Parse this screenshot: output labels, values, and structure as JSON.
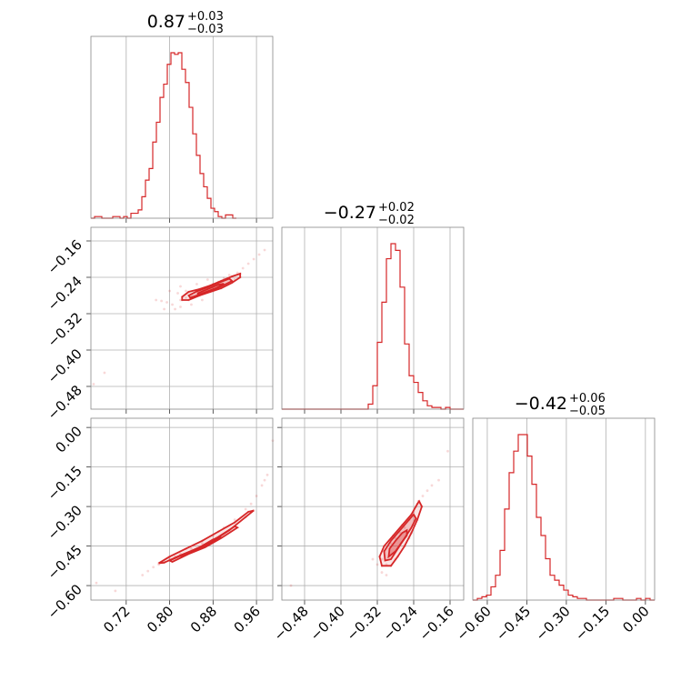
{
  "chart_data": {
    "type": "corner",
    "color": "#d62728",
    "parameters": [
      {
        "title": {
          "median": "0.87",
          "plus": "+0.03",
          "minus": "−0.03"
        },
        "range": [
          0.655,
          0.99
        ],
        "ticks": [
          0.72,
          0.8,
          0.88,
          0.96
        ],
        "tick_labels": [
          "0.72",
          "0.80",
          "0.88",
          "0.96"
        ],
        "hist": {
          "edges_start": 0.655,
          "bin_width": 0.0067,
          "counts": [
            0.0,
            0.01,
            0.01,
            0.0,
            0.0,
            0.0,
            0.01,
            0.01,
            0.0,
            0.01,
            0.0,
            0.03,
            0.03,
            0.05,
            0.13,
            0.23,
            0.3,
            0.46,
            0.58,
            0.73,
            0.81,
            0.93,
            1.0,
            0.99,
            1.0,
            0.9,
            0.82,
            0.67,
            0.51,
            0.38,
            0.27,
            0.19,
            0.12,
            0.06,
            0.04,
            0.01,
            0.0,
            0.02,
            0.02,
            0.0
          ]
        }
      },
      {
        "title": {
          "median": "−0.27",
          "plus": "+0.02",
          "minus": "−0.02"
        },
        "range": [
          -0.53,
          -0.13
        ],
        "ticks": [
          -0.48,
          -0.4,
          -0.32,
          -0.24,
          -0.16
        ],
        "tick_labels": [
          "−0.48",
          "−0.40",
          "−0.32",
          "−0.24",
          "−0.16"
        ],
        "hist": {
          "edges_start": -0.53,
          "bin_width": 0.01,
          "counts": [
            0,
            0,
            0,
            0,
            0,
            0,
            0,
            0,
            0,
            0,
            0,
            0,
            0,
            0,
            0,
            0,
            0,
            0,
            0,
            0.03,
            0.14,
            0.4,
            0.64,
            0.9,
            0.99,
            0.95,
            0.73,
            0.39,
            0.2,
            0.16,
            0.1,
            0.05,
            0.02,
            0.01,
            0.01,
            0.0,
            0.01,
            0.0,
            0.0,
            0.0
          ]
        }
      },
      {
        "title": {
          "median": "−0.42",
          "plus": "+0.06",
          "minus": "−0.05"
        },
        "range": [
          -0.655,
          0.035
        ],
        "ticks": [
          -0.6,
          -0.45,
          -0.3,
          -0.15,
          0.0
        ],
        "tick_labels": [
          "−0.60",
          "−0.45",
          "−0.30",
          "−0.15",
          "0.00"
        ],
        "hist": {
          "edges_start": -0.655,
          "bin_width": 0.01725,
          "counts": [
            0.0,
            0.01,
            0.02,
            0.03,
            0.08,
            0.15,
            0.3,
            0.55,
            0.77,
            0.9,
            1.0,
            1.0,
            0.87,
            0.7,
            0.5,
            0.39,
            0.25,
            0.15,
            0.12,
            0.09,
            0.06,
            0.03,
            0.02,
            0.01,
            0.01,
            0.0,
            0.0,
            0.0,
            0.0,
            0.0,
            0.0,
            0.01,
            0.01,
            0.0,
            0.0,
            0.0,
            0.01,
            0.0,
            0.01,
            0.0
          ]
        }
      }
    ],
    "pairs": [
      {
        "x_param": 0,
        "y_param": 1,
        "center": [
          0.865,
          -0.265
        ],
        "points": [
          [
            0.84,
            -0.28
          ],
          [
            0.85,
            -0.27
          ],
          [
            0.86,
            -0.266
          ],
          [
            0.87,
            -0.262
          ],
          [
            0.88,
            -0.255
          ],
          [
            0.89,
            -0.25
          ],
          [
            0.9,
            -0.242
          ],
          [
            0.91,
            -0.235
          ],
          [
            0.82,
            -0.29
          ],
          [
            0.83,
            -0.285
          ],
          [
            0.925,
            -0.23
          ],
          [
            0.935,
            -0.22
          ],
          [
            0.945,
            -0.21
          ],
          [
            0.955,
            -0.2
          ],
          [
            0.965,
            -0.19
          ],
          [
            0.975,
            -0.18
          ],
          [
            0.805,
            -0.3
          ],
          [
            0.795,
            -0.295
          ],
          [
            0.785,
            -0.292
          ],
          [
            0.775,
            -0.29
          ],
          [
            0.79,
            -0.31
          ],
          [
            0.81,
            -0.31
          ],
          [
            0.82,
            -0.305
          ],
          [
            0.84,
            -0.3
          ],
          [
            0.86,
            -0.29
          ],
          [
            0.88,
            -0.27
          ],
          [
            0.9,
            -0.26
          ],
          [
            0.92,
            -0.245
          ],
          [
            0.87,
            -0.245
          ],
          [
            0.85,
            -0.255
          ],
          [
            0.83,
            -0.27
          ],
          [
            0.815,
            -0.275
          ],
          [
            0.68,
            -0.45
          ],
          [
            0.66,
            -0.475
          ],
          [
            0.8,
            -0.27
          ],
          [
            0.82,
            -0.26
          ]
        ],
        "contours": [
          [
            [
              0.823,
              -0.283
            ],
            [
              0.835,
              -0.272
            ],
            [
              0.855,
              -0.266
            ],
            [
              0.875,
              -0.258
            ],
            [
              0.895,
              -0.248
            ],
            [
              0.915,
              -0.238
            ],
            [
              0.93,
              -0.232
            ],
            [
              0.93,
              -0.24
            ],
            [
              0.915,
              -0.252
            ],
            [
              0.895,
              -0.264
            ],
            [
              0.875,
              -0.272
            ],
            [
              0.855,
              -0.28
            ],
            [
              0.835,
              -0.29
            ],
            [
              0.823,
              -0.29
            ]
          ],
          [
            [
              0.835,
              -0.28
            ],
            [
              0.85,
              -0.271
            ],
            [
              0.87,
              -0.262
            ],
            [
              0.89,
              -0.252
            ],
            [
              0.91,
              -0.243
            ],
            [
              0.915,
              -0.248
            ],
            [
              0.895,
              -0.26
            ],
            [
              0.875,
              -0.27
            ],
            [
              0.855,
              -0.278
            ],
            [
              0.838,
              -0.285
            ]
          ],
          [
            [
              0.852,
              -0.275
            ],
            [
              0.87,
              -0.266
            ],
            [
              0.89,
              -0.256
            ],
            [
              0.9,
              -0.254
            ],
            [
              0.885,
              -0.264
            ],
            [
              0.865,
              -0.273
            ],
            [
              0.852,
              -0.279
            ]
          ]
        ]
      },
      {
        "x_param": 0,
        "y_param": 2,
        "center": [
          0.865,
          -0.42
        ],
        "points": [
          [
            0.79,
            -0.51
          ],
          [
            0.8,
            -0.5
          ],
          [
            0.81,
            -0.49
          ],
          [
            0.82,
            -0.48
          ],
          [
            0.84,
            -0.46
          ],
          [
            0.86,
            -0.44
          ],
          [
            0.88,
            -0.41
          ],
          [
            0.9,
            -0.38
          ],
          [
            0.92,
            -0.35
          ],
          [
            0.94,
            -0.31
          ],
          [
            0.95,
            -0.29
          ],
          [
            0.96,
            -0.26
          ],
          [
            0.97,
            -0.22
          ],
          [
            0.975,
            -0.2
          ],
          [
            0.98,
            -0.18
          ],
          [
            0.99,
            -0.05
          ],
          [
            0.77,
            -0.53
          ],
          [
            0.76,
            -0.545
          ],
          [
            0.75,
            -0.56
          ],
          [
            0.78,
            -0.52
          ],
          [
            0.665,
            -0.59
          ],
          [
            0.7,
            -0.62
          ]
        ],
        "contours": [
          [
            [
              0.79,
              -0.513
            ],
            [
              0.82,
              -0.485
            ],
            [
              0.85,
              -0.46
            ],
            [
              0.88,
              -0.43
            ],
            [
              0.91,
              -0.39
            ],
            [
              0.94,
              -0.34
            ],
            [
              0.955,
              -0.315
            ],
            [
              0.945,
              -0.32
            ],
            [
              0.92,
              -0.36
            ],
            [
              0.89,
              -0.395
            ],
            [
              0.86,
              -0.43
            ],
            [
              0.83,
              -0.46
            ],
            [
              0.8,
              -0.49
            ],
            [
              0.78,
              -0.515
            ]
          ],
          [
            [
              0.8,
              -0.505
            ],
            [
              0.83,
              -0.478
            ],
            [
              0.86,
              -0.45
            ],
            [
              0.89,
              -0.415
            ],
            [
              0.92,
              -0.375
            ],
            [
              0.925,
              -0.38
            ],
            [
              0.895,
              -0.42
            ],
            [
              0.865,
              -0.455
            ],
            [
              0.835,
              -0.48
            ],
            [
              0.805,
              -0.51
            ]
          ],
          [
            [
              0.82,
              -0.49
            ],
            [
              0.85,
              -0.463
            ],
            [
              0.875,
              -0.44
            ],
            [
              0.895,
              -0.415
            ],
            [
              0.88,
              -0.425
            ],
            [
              0.855,
              -0.455
            ],
            [
              0.83,
              -0.48
            ]
          ]
        ]
      },
      {
        "x_param": 1,
        "y_param": 2,
        "center": [
          -0.27,
          -0.42
        ],
        "points": [
          [
            -0.3,
            -0.52
          ],
          [
            -0.31,
            -0.5
          ],
          [
            -0.305,
            -0.47
          ],
          [
            -0.29,
            -0.44
          ],
          [
            -0.28,
            -0.42
          ],
          [
            -0.27,
            -0.4
          ],
          [
            -0.26,
            -0.38
          ],
          [
            -0.25,
            -0.35
          ],
          [
            -0.24,
            -0.32
          ],
          [
            -0.235,
            -0.3
          ],
          [
            -0.23,
            -0.28
          ],
          [
            -0.22,
            -0.26
          ],
          [
            -0.21,
            -0.24
          ],
          [
            -0.2,
            -0.22
          ],
          [
            -0.185,
            -0.2
          ],
          [
            -0.31,
            -0.55
          ],
          [
            -0.3,
            -0.56
          ],
          [
            -0.28,
            -0.5
          ],
          [
            -0.26,
            -0.45
          ],
          [
            -0.25,
            -0.42
          ],
          [
            -0.32,
            -0.52
          ],
          [
            -0.33,
            -0.5
          ],
          [
            -0.165,
            -0.09
          ],
          [
            -0.51,
            -0.6
          ]
        ],
        "contours": [
          [
            [
              -0.31,
              -0.525
            ],
            [
              -0.315,
              -0.49
            ],
            [
              -0.305,
              -0.45
            ],
            [
              -0.285,
              -0.41
            ],
            [
              -0.265,
              -0.37
            ],
            [
              -0.245,
              -0.33
            ],
            [
              -0.232,
              -0.29
            ],
            [
              -0.228,
              -0.28
            ],
            [
              -0.222,
              -0.3
            ],
            [
              -0.232,
              -0.35
            ],
            [
              -0.245,
              -0.4
            ],
            [
              -0.26,
              -0.45
            ],
            [
              -0.275,
              -0.49
            ],
            [
              -0.29,
              -0.525
            ]
          ],
          [
            [
              -0.303,
              -0.505
            ],
            [
              -0.305,
              -0.47
            ],
            [
              -0.29,
              -0.43
            ],
            [
              -0.27,
              -0.39
            ],
            [
              -0.25,
              -0.35
            ],
            [
              -0.24,
              -0.33
            ],
            [
              -0.235,
              -0.345
            ],
            [
              -0.245,
              -0.38
            ],
            [
              -0.26,
              -0.42
            ],
            [
              -0.275,
              -0.46
            ],
            [
              -0.29,
              -0.5
            ]
          ],
          [
            [
              -0.295,
              -0.49
            ],
            [
              -0.293,
              -0.46
            ],
            [
              -0.28,
              -0.43
            ],
            [
              -0.265,
              -0.4
            ],
            [
              -0.255,
              -0.39
            ],
            [
              -0.255,
              -0.41
            ],
            [
              -0.268,
              -0.44
            ],
            [
              -0.28,
              -0.47
            ]
          ]
        ]
      }
    ]
  }
}
